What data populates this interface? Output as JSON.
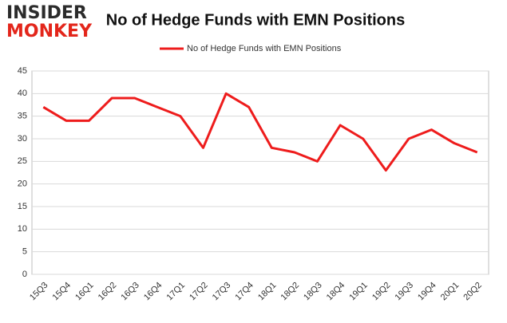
{
  "logo": {
    "line1": "INSIDER",
    "line2": "MONKEY"
  },
  "chart_data": {
    "type": "line",
    "title": "No of Hedge Funds with EMN Positions",
    "categories": [
      "15Q3",
      "15Q4",
      "16Q1",
      "16Q2",
      "16Q3",
      "16Q4",
      "17Q1",
      "17Q2",
      "17Q3",
      "17Q4",
      "18Q1",
      "18Q2",
      "18Q3",
      "18Q4",
      "19Q1",
      "19Q2",
      "19Q3",
      "19Q4",
      "20Q1",
      "20Q2"
    ],
    "series": [
      {
        "name": "No of Hedge Funds with EMN Positions",
        "color": "#ee1c1c",
        "values": [
          37,
          34,
          34,
          39,
          39,
          37,
          35,
          28,
          40,
          37,
          28,
          27,
          25,
          33,
          30,
          23,
          30,
          32,
          29,
          27
        ]
      }
    ],
    "ylim": [
      0,
      45
    ],
    "yticks": [
      0,
      5,
      10,
      15,
      20,
      25,
      30,
      35,
      40,
      45
    ],
    "grid": true
  }
}
